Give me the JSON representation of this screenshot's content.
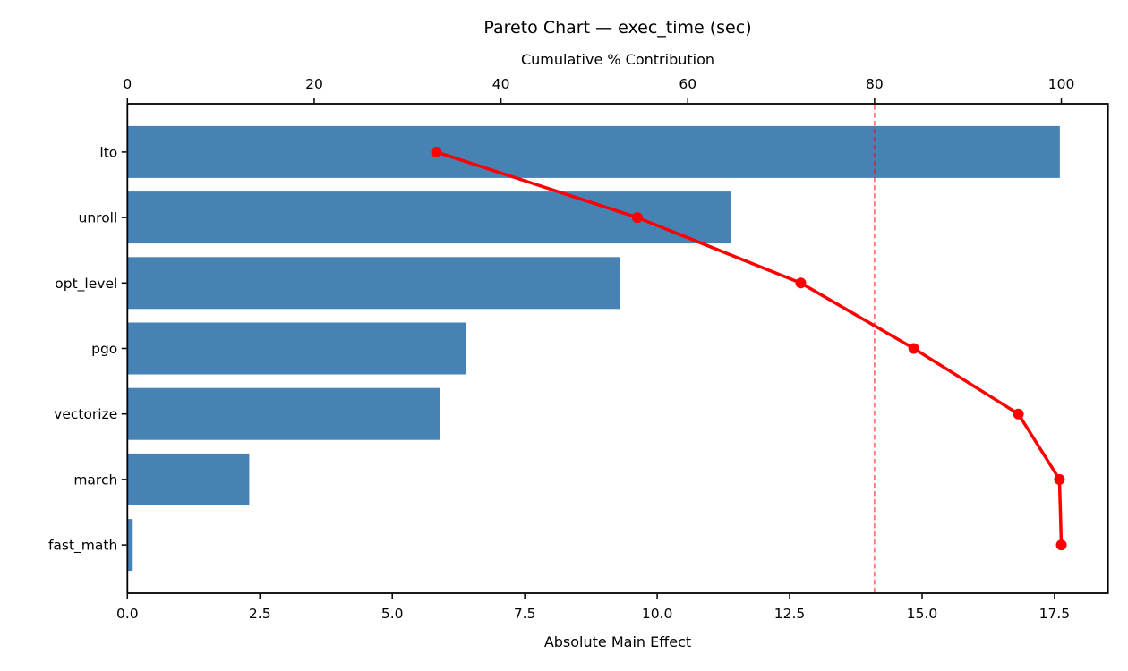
{
  "chart_data": {
    "type": "bar",
    "subtype": "pareto",
    "title": "Pareto Chart — exec_time (sec)",
    "categories": [
      "lto",
      "unroll",
      "opt_level",
      "pgo",
      "vectorize",
      "march",
      "fast_math"
    ],
    "series": [
      {
        "name": "Absolute Main Effect",
        "type": "bar",
        "values": [
          17.6,
          11.4,
          9.3,
          6.4,
          5.9,
          2.3,
          0.1
        ]
      },
      {
        "name": "Cumulative % Contribution",
        "type": "line",
        "values": [
          33.1,
          54.6,
          72.1,
          84.2,
          95.4,
          99.8,
          100.0
        ]
      }
    ],
    "threshold_pct": 80,
    "bottom_axis": {
      "label": "Absolute Main Effect",
      "tick_values": [
        0,
        2.5,
        5,
        7.5,
        10,
        12.5,
        15,
        17.5
      ],
      "tick_labels": [
        "0.0",
        "2.5",
        "5.0",
        "7.5",
        "10.0",
        "12.5",
        "15.0",
        "17.5"
      ],
      "range": [
        0,
        18.51
      ]
    },
    "top_axis": {
      "label": "Cumulative % Contribution",
      "tick_values": [
        0,
        20,
        40,
        60,
        80,
        100
      ],
      "tick_labels": [
        "0",
        "20",
        "40",
        "60",
        "80",
        "100"
      ],
      "range": [
        0,
        105
      ]
    },
    "grid": false,
    "legend": "none",
    "colors": {
      "bar": "#4682B4",
      "line": "#FF0000",
      "marker": "#FF0000",
      "threshold": "rgba(255,0,0,0.55)",
      "spine": "#000000",
      "background": "#FFFFFF"
    }
  }
}
